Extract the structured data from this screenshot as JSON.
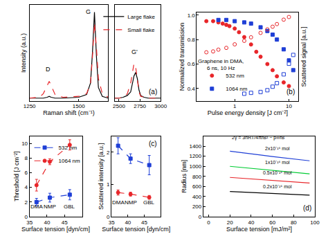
{
  "chart_data": [
    {
      "type": "line",
      "ylabel": "Intensity (a.u.)",
      "xlabel": "Raman shift (cm⁻¹)",
      "xlim": [
        1250,
        1650
      ],
      "xticks": [
        1250,
        1500
      ],
      "ylim": [
        0,
        1.08
      ],
      "yticks": [],
      "tick_labels": "x",
      "series": [
        {
          "name": "Large flake",
          "color": "#000000",
          "line_style": "solid",
          "x": [
            1250,
            1300,
            1320,
            1340,
            1350,
            1360,
            1380,
            1420,
            1500,
            1540,
            1560,
            1570,
            1580,
            1590,
            1600,
            1620,
            1650
          ],
          "values": [
            0.03,
            0.03,
            0.03,
            0.04,
            0.05,
            0.04,
            0.03,
            0.03,
            0.04,
            0.07,
            0.2,
            0.55,
            1.0,
            0.5,
            0.15,
            0.05,
            0.03
          ]
        },
        {
          "name": "Small flake",
          "color": "#e8262a",
          "line_style": "dash",
          "x": [
            1250,
            1300,
            1320,
            1340,
            1350,
            1360,
            1380,
            1420,
            1500,
            1540,
            1560,
            1570,
            1580,
            1590,
            1600,
            1620,
            1650
          ],
          "values": [
            0.03,
            0.04,
            0.08,
            0.18,
            0.22,
            0.17,
            0.07,
            0.04,
            0.05,
            0.08,
            0.2,
            0.5,
            0.88,
            0.6,
            0.25,
            0.08,
            0.04
          ]
        }
      ],
      "annotations": [
        {
          "text": "D",
          "x": 1345,
          "y": 0.3
        },
        {
          "text": "G",
          "x": 1550,
          "y": 0.95
        }
      ]
    },
    {
      "type": "line",
      "label": "(a)",
      "xlim": [
        2450,
        3000
      ],
      "xticks": [
        2500,
        2750,
        3000
      ],
      "ylim": [
        0,
        1.08
      ],
      "yticks": [],
      "tick_labels": "x",
      "legend": "top right",
      "series": [
        {
          "name": "Large flake",
          "color": "#000000",
          "line_style": "solid",
          "x": [
            2450,
            2500,
            2550,
            2600,
            2640,
            2660,
            2680,
            2700,
            2720,
            2740,
            2760,
            2800,
            2850,
            2900,
            3000
          ],
          "values": [
            0.03,
            0.03,
            0.04,
            0.06,
            0.1,
            0.18,
            0.28,
            0.32,
            0.25,
            0.12,
            0.06,
            0.04,
            0.03,
            0.03,
            0.03
          ]
        },
        {
          "name": "Small flake",
          "color": "#e8262a",
          "line_style": "dash",
          "x": [
            2450,
            2500,
            2550,
            2600,
            2640,
            2660,
            2680,
            2700,
            2720,
            2740,
            2760,
            2800,
            2850,
            2900,
            3000
          ],
          "values": [
            0.03,
            0.03,
            0.04,
            0.08,
            0.2,
            0.33,
            0.42,
            0.38,
            0.22,
            0.1,
            0.05,
            0.04,
            0.03,
            0.03,
            0.03
          ]
        }
      ],
      "annotations": [
        {
          "text": "G'",
          "x": 2690,
          "y": 0.5
        }
      ]
    },
    {
      "type": "scatter",
      "label": "(b)",
      "log": "x",
      "xlabel": "Pulse energy density [J cm⁻²]",
      "ylabel": "Normalized transmission",
      "y2label": "Scattered signal [a.u.]",
      "xlim": [
        0.2,
        15
      ],
      "xticks": [
        1,
        10
      ],
      "ylim": [
        0.3,
        1.02
      ],
      "yticks": [
        {
          "value": 0.4,
          "label": "0.4"
        },
        {
          "value": 0.6,
          "label": "0.6"
        },
        {
          "value": 0.8,
          "label": "0.8"
        },
        {
          "value": 1.0,
          "label": "1.0"
        }
      ],
      "y2lim": [
        0,
        1
      ],
      "y2ticks": [],
      "legend": "bottom left",
      "series": [
        {
          "name": "532 nm",
          "color": "#e8262a",
          "marker": "circle",
          "line_style": "none",
          "x": [
            0.3,
            0.4,
            0.5,
            0.6,
            0.7,
            0.8,
            1.0,
            1.2,
            1.5,
            2,
            2.5,
            3,
            4,
            5,
            6,
            8,
            10
          ],
          "values": [
            0.95,
            0.95,
            0.94,
            0.93,
            0.92,
            0.91,
            0.89,
            0.86,
            0.82,
            0.76,
            0.7,
            0.66,
            0.6,
            0.55,
            0.5,
            0.45,
            0.42
          ]
        },
        {
          "name": "1064 nm",
          "color": "#1f3fd6",
          "marker": "square",
          "line_style": "none",
          "x": [
            0.5,
            0.7,
            1,
            1.5,
            2,
            3,
            4,
            5,
            6,
            8,
            10,
            12
          ],
          "values": [
            0.96,
            0.96,
            0.95,
            0.94,
            0.93,
            0.9,
            0.87,
            0.84,
            0.8,
            0.72,
            0.63,
            0.55
          ]
        },
        {
          "color": "#e8262a",
          "marker": "circle-open",
          "line_style": "none",
          "axis": "y2",
          "x": [
            0.3,
            0.4,
            0.5,
            0.7,
            1,
            1.5,
            2,
            3,
            4,
            5,
            6,
            8,
            10
          ],
          "values": [
            0.55,
            0.56,
            0.58,
            0.6,
            0.64,
            0.68,
            0.72,
            0.77,
            0.81,
            0.84,
            0.87,
            0.92,
            0.95
          ]
        },
        {
          "color": "#1f3fd6",
          "marker": "square-open",
          "line_style": "none",
          "axis": "y2",
          "x": [
            1.5,
            2,
            3,
            4,
            5,
            6,
            8,
            10,
            12
          ],
          "values": [
            0.08,
            0.09,
            0.1,
            0.12,
            0.16,
            0.2,
            0.3,
            0.42,
            0.52
          ]
        }
      ],
      "annotations": [
        {
          "text": "Graphene in DMA,",
          "x": 0.55,
          "y": 0.585
        },
        {
          "text": "6 ns, 10 Hz",
          "x": 0.55,
          "y": 0.53
        }
      ]
    },
    {
      "type": "scatter",
      "xlabel": "Surface tension [dyn/cm]",
      "ylabel": "Threshold [J cm⁻²]",
      "xlim": [
        35,
        50
      ],
      "xticks": [
        35,
        40,
        45
      ],
      "ylim": [
        0,
        11
      ],
      "yticks": [
        0,
        2,
        4,
        6,
        8,
        10
      ],
      "legend": "top left",
      "series": [
        {
          "name": "532 nm",
          "color": "#1f3fd6",
          "marker": "square",
          "line_style": "dash",
          "x": [
            37,
            40.8,
            46.5
          ],
          "values": [
            2.0,
            2.6,
            3.0
          ],
          "errors": [
            0.5,
            0.6,
            0.7
          ]
        },
        {
          "name": "1064 nm",
          "color": "#e8262a",
          "marker": "circle",
          "line_style": "dash",
          "x": [
            37,
            40.8,
            46.5
          ],
          "values": [
            4.3,
            7.5,
            9.8
          ],
          "errors": [
            0.8,
            0.4,
            0.7
          ]
        }
      ],
      "annotations": [
        {
          "text": "DMA",
          "x": 37,
          "y": 0.8
        },
        {
          "text": "NMP",
          "x": 40.8,
          "y": 0.8
        },
        {
          "text": "GBL",
          "x": 46.5,
          "y": 0.8
        }
      ]
    },
    {
      "type": "scatter",
      "label": "(c)",
      "xlabel": "Surface tension [dyn/cm]",
      "ylabel": "Scattered intensity [a.u.]",
      "xlim": [
        35,
        50
      ],
      "xticks": [
        35,
        40,
        45
      ],
      "ylim": [
        0,
        2.5
      ],
      "yticks": [
        0,
        1,
        2
      ],
      "series": [
        {
          "name": "532 nm",
          "color": "#1f3fd6",
          "marker": "square",
          "line_style": "dash",
          "x": [
            37,
            40.8,
            46.5
          ],
          "values": [
            2.2,
            1.8,
            1.6
          ],
          "errors": [
            0.25,
            0.15,
            0.3
          ]
        },
        {
          "name": "1064 nm",
          "color": "#e8262a",
          "marker": "circle",
          "line_style": "dash",
          "x": [
            37,
            40.8,
            46.5
          ],
          "values": [
            0.75,
            0.7,
            0.6
          ],
          "errors": [
            0.08,
            0.06,
            0.06
          ]
        }
      ],
      "annotations": [
        {
          "text": "DMA",
          "x": 37,
          "y": 0.3
        },
        {
          "text": "NMP",
          "x": 40.8,
          "y": 0.3
        },
        {
          "text": "GBL",
          "x": 46.5,
          "y": 0.3
        }
      ]
    },
    {
      "type": "line",
      "label": "(d)",
      "xlabel": "Surface tension [mJ/m²]",
      "ylabel": "Radius [nm]",
      "xlim": [
        -5,
        100
      ],
      "xticks": [
        0,
        20,
        40,
        60,
        80,
        100
      ],
      "ylim": [
        0,
        1600
      ],
      "yticks": [
        0,
        200,
        400,
        600,
        800,
        1000,
        1200,
        1400
      ],
      "series": [
        {
          "color": "#1f3fd6",
          "line_style": "solid",
          "x": [
            20,
            30,
            40,
            50,
            60,
            70,
            80,
            90,
            95
          ],
          "values": [
            1300,
            1270,
            1245,
            1220,
            1195,
            1170,
            1145,
            1120,
            1110
          ]
        },
        {
          "color": "#00cc33",
          "line_style": "solid",
          "x": [
            20,
            30,
            40,
            50,
            60,
            70,
            80,
            90,
            95
          ],
          "values": [
            1000,
            980,
            960,
            940,
            920,
            900,
            880,
            860,
            850
          ]
        },
        {
          "color": "#e8262a",
          "line_style": "solid",
          "x": [
            20,
            30,
            40,
            50,
            60,
            70,
            80,
            90,
            95
          ],
          "values": [
            780,
            765,
            750,
            735,
            720,
            705,
            690,
            675,
            668
          ]
        },
        {
          "color": "#000000",
          "line_style": "solid",
          "x": [
            20,
            30,
            40,
            50,
            60,
            70,
            80,
            90,
            95
          ],
          "values": [
            500,
            490,
            480,
            470,
            460,
            450,
            440,
            432,
            428
          ]
        }
      ],
      "annotations": [
        {
          "text": "2γ = 3nRT/4πrB² − p∞rB",
          "x": 47,
          "y": 1480
        },
        {
          "text": "2x10⁻¹⁶ mol",
          "x": 65,
          "y": 1275
        },
        {
          "text": "1x10⁻¹⁶ mol",
          "x": 65,
          "y": 1000
        },
        {
          "text": "0.5x10⁻¹⁶ mol",
          "x": 65,
          "y": 800
        },
        {
          "text": "0.2x10⁻¹⁶ mol",
          "x": 65,
          "y": 525
        }
      ]
    }
  ]
}
